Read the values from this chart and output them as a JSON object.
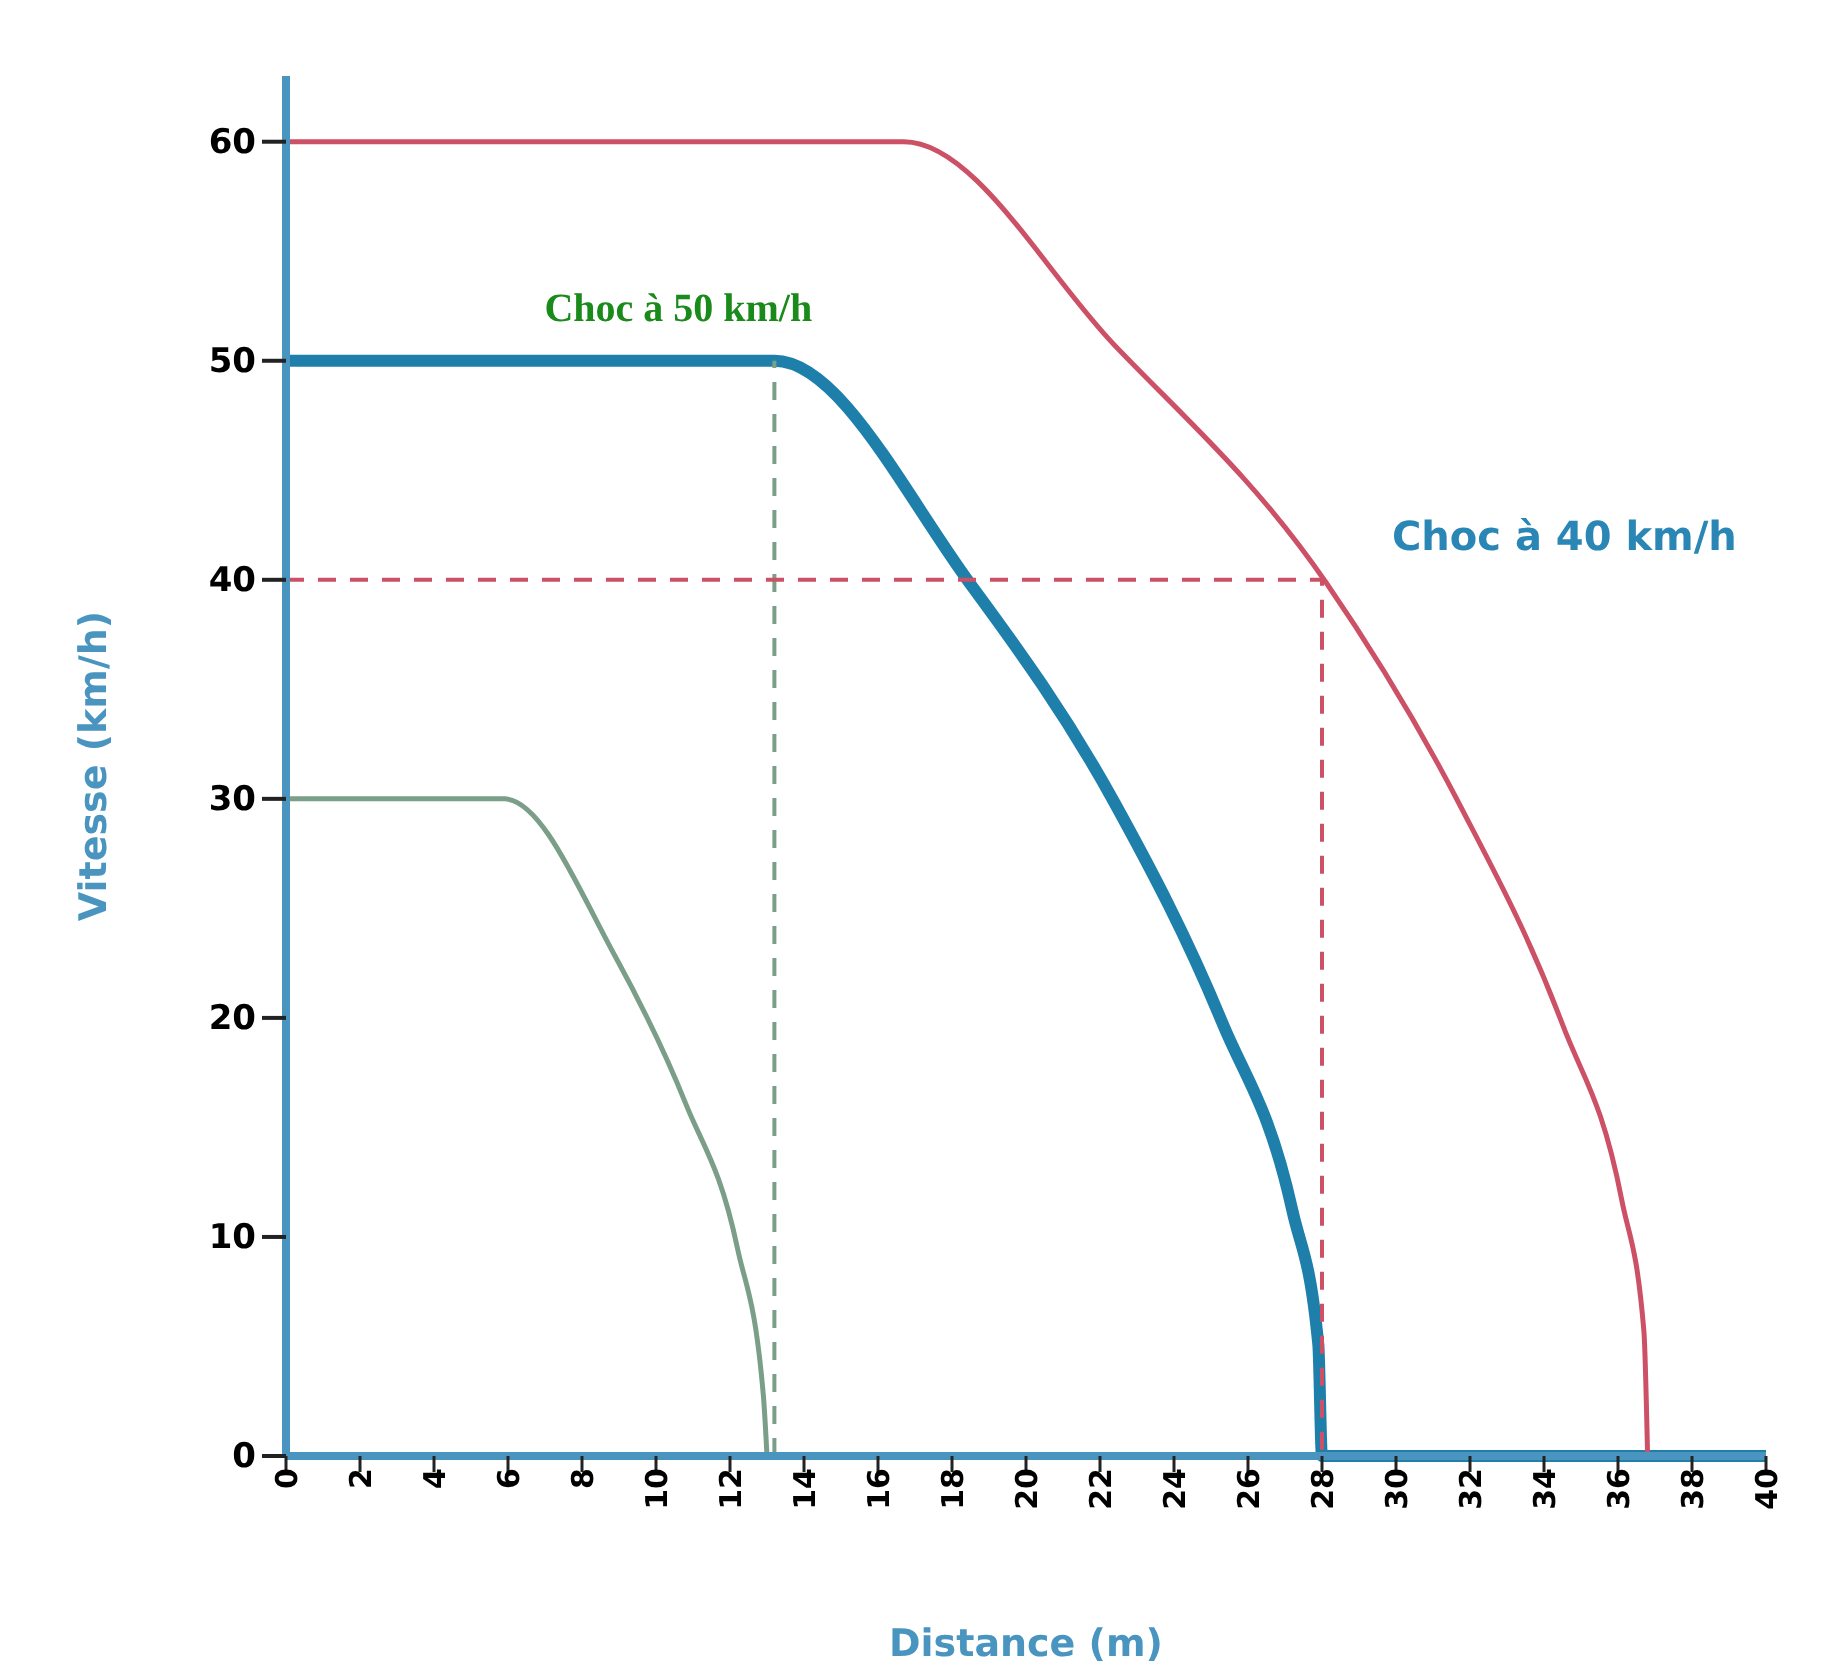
{
  "chart_data": {
    "type": "line",
    "xlabel": "Distance (m)",
    "ylabel": "Vitesse (km/h)",
    "xlim": [
      0,
      40
    ],
    "ylim": [
      0,
      63
    ],
    "xticks": [
      0,
      2,
      4,
      6,
      8,
      10,
      12,
      14,
      16,
      18,
      20,
      22,
      24,
      26,
      28,
      30,
      32,
      34,
      36,
      38,
      40
    ],
    "yticks": [
      0,
      10,
      20,
      30,
      40,
      50,
      60
    ],
    "grid": false,
    "marker": "none",
    "series": [
      {
        "color": "#7a9e87",
        "x": [
          0,
          5.9,
          8.9,
          10.8,
          12.2,
          12.9,
          13.0
        ],
        "values": [
          30,
          30,
          22.8,
          16.1,
          9.5,
          2.8,
          0
        ]
      },
      {
        "color": "#1e7fab",
        "x": [
          0,
          13.2,
          18.5,
          22.4,
          25.3,
          27.2,
          27.9,
          28.0,
          40
        ],
        "values": [
          50,
          50,
          39.8,
          29.8,
          19.8,
          11.2,
          5.1,
          0,
          0
        ]
      },
      {
        "color": "#cc5066",
        "x": [
          0,
          16.7,
          22.4,
          28.1,
          31.7,
          34.5,
          36.1,
          36.7,
          36.8
        ],
        "values": [
          60,
          60,
          50.7,
          39.9,
          29.8,
          19.7,
          11.7,
          5.7,
          0
        ]
      },
      {
        "color": "#7a9e87",
        "line_style": "dashed",
        "x": [
          13.2,
          13.2
        ],
        "values": [
          0,
          50
        ]
      },
      {
        "color": "#cc5066",
        "line_style": "dashed",
        "x": [
          0,
          28,
          28
        ],
        "values": [
          40,
          40,
          0
        ]
      }
    ],
    "annotations": [
      {
        "text": "Choc à 50 km/h",
        "x": 13.2,
        "y": 50
      },
      {
        "text": "Choc à 40 km/h",
        "x": 28,
        "y": 40
      }
    ]
  }
}
